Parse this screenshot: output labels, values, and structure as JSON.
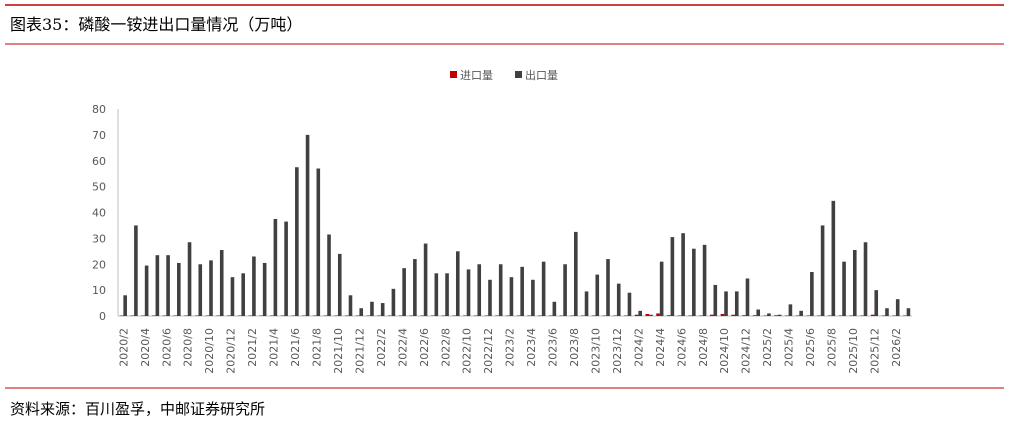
{
  "header": {
    "title": "图表35：磷酸一铵进出口量情况（万吨）"
  },
  "chart_data": {
    "type": "bar",
    "categories": [
      "2020/2",
      null,
      "2020/4",
      null,
      "2020/6",
      null,
      "2020/8",
      null,
      "2020/10",
      null,
      "2020/12",
      null,
      "2021/2",
      null,
      "2021/4",
      null,
      "2021/6",
      null,
      "2021/8",
      null,
      "2021/10",
      null,
      "2021/12",
      null,
      "2022/2",
      null,
      "2022/4",
      null,
      "2022/6",
      null,
      "2022/8",
      null,
      "2022/10",
      null,
      "2022/12",
      null,
      "2023/2",
      null,
      "2023/4",
      null,
      "2023/6",
      null,
      "2023/8",
      null,
      "2023/10",
      null,
      "2023/12",
      null,
      "2024/2",
      null,
      "2024/4",
      null,
      "2024/6",
      null,
      "2024/8",
      null,
      "2024/10",
      null,
      "2024/12",
      null,
      "2025/2",
      null,
      "2025/4",
      null,
      "2025/6",
      null,
      "2025/8",
      null,
      "2025/10",
      null,
      "2025/12",
      null,
      "2026/2",
      null
    ],
    "series": [
      {
        "name": "进口量",
        "color": "#c00000",
        "values": [
          0.2,
          0.2,
          0.2,
          0.2,
          0.2,
          0.2,
          0.2,
          0.2,
          0.2,
          0.2,
          0.2,
          0.2,
          0.2,
          0.2,
          0.2,
          0.2,
          0.2,
          0.2,
          0.2,
          0.2,
          0.2,
          0.2,
          0.2,
          0.2,
          0.2,
          0.2,
          0.2,
          0.2,
          0.2,
          0.2,
          0.2,
          0.2,
          0.2,
          0.2,
          0.2,
          0.2,
          0.2,
          0.2,
          0.2,
          0.2,
          0.2,
          0.2,
          0.2,
          0.2,
          0.2,
          0.2,
          0.2,
          0.2,
          0.5,
          0.8,
          1,
          0.3,
          0.2,
          0.2,
          0.2,
          0.5,
          0.8,
          0.5,
          0.3,
          0.3,
          0.2,
          0.3,
          0.2,
          0.2,
          0.2,
          0.2,
          0.2,
          0.2,
          0.2,
          0.2,
          0.5,
          0.2,
          0.2,
          0.2
        ]
      },
      {
        "name": "出口量",
        "color": "#404040",
        "values": [
          8,
          35,
          19.5,
          23.5,
          23.5,
          20.5,
          28.5,
          20,
          21.5,
          25.5,
          15,
          16.5,
          23,
          20.5,
          37.5,
          36.5,
          57.5,
          70,
          57,
          31.5,
          24,
          8,
          3,
          5.5,
          5,
          10.5,
          18.5,
          22,
          28,
          16.5,
          16.5,
          25,
          18,
          20,
          14,
          20,
          15,
          19,
          14,
          21,
          5.5,
          20,
          32.5,
          9.5,
          16,
          22,
          12.5,
          9,
          2,
          0.5,
          21,
          30.5,
          32,
          26,
          27.5,
          12,
          9.5,
          9.5,
          14.5,
          2.5,
          1,
          0.5,
          4.5,
          2,
          17,
          35,
          44.5,
          21,
          25.5,
          28.5,
          10,
          3,
          6.5,
          3
        ]
      }
    ],
    "ylim": [
      0,
      80
    ],
    "yticks": [
      0,
      10,
      20,
      30,
      40,
      50,
      60,
      70,
      80
    ],
    "grid": false
  },
  "footer": {
    "source": "资料来源：百川盈孚，中邮证券研究所"
  }
}
